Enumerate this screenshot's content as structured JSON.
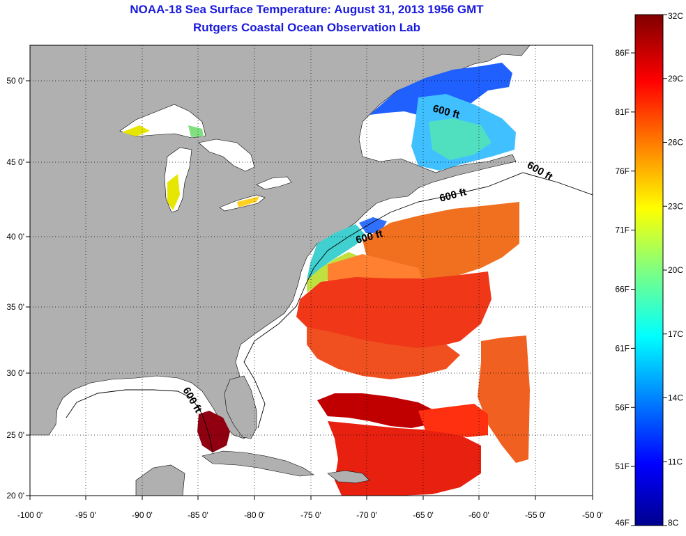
{
  "title": "NOAA-18 Sea Surface Temperature:  August 31, 2013 1956 GMT",
  "subtitle": "Rutgers Coastal Ocean Observation Lab",
  "x_ticks": [
    "-100 0'",
    "-95 0'",
    "-90 0'",
    "-85 0'",
    "-80 0'",
    "-75 0'",
    "-70 0'",
    "-65 0'",
    "-60 0'",
    "-55 0'",
    "-50 0'"
  ],
  "y_ticks": [
    "50 0'",
    "45 0'",
    "40 0'",
    "35 0'",
    "30 0'",
    "25 0'",
    "20 0'"
  ],
  "colorbar": {
    "celsius": [
      "32C",
      "29C",
      "26C",
      "23C",
      "20C",
      "17C",
      "14C",
      "11C",
      "8C"
    ],
    "fahrenheit": [
      "86F",
      "81F",
      "76F",
      "71F",
      "66F",
      "61F",
      "56F",
      "51F",
      "46F"
    ]
  },
  "isobath_label": "600 ft",
  "colors": {
    "land": "#b0b0b0",
    "ocean_nodata": "#ffffff",
    "title": "#1a1adc"
  }
}
